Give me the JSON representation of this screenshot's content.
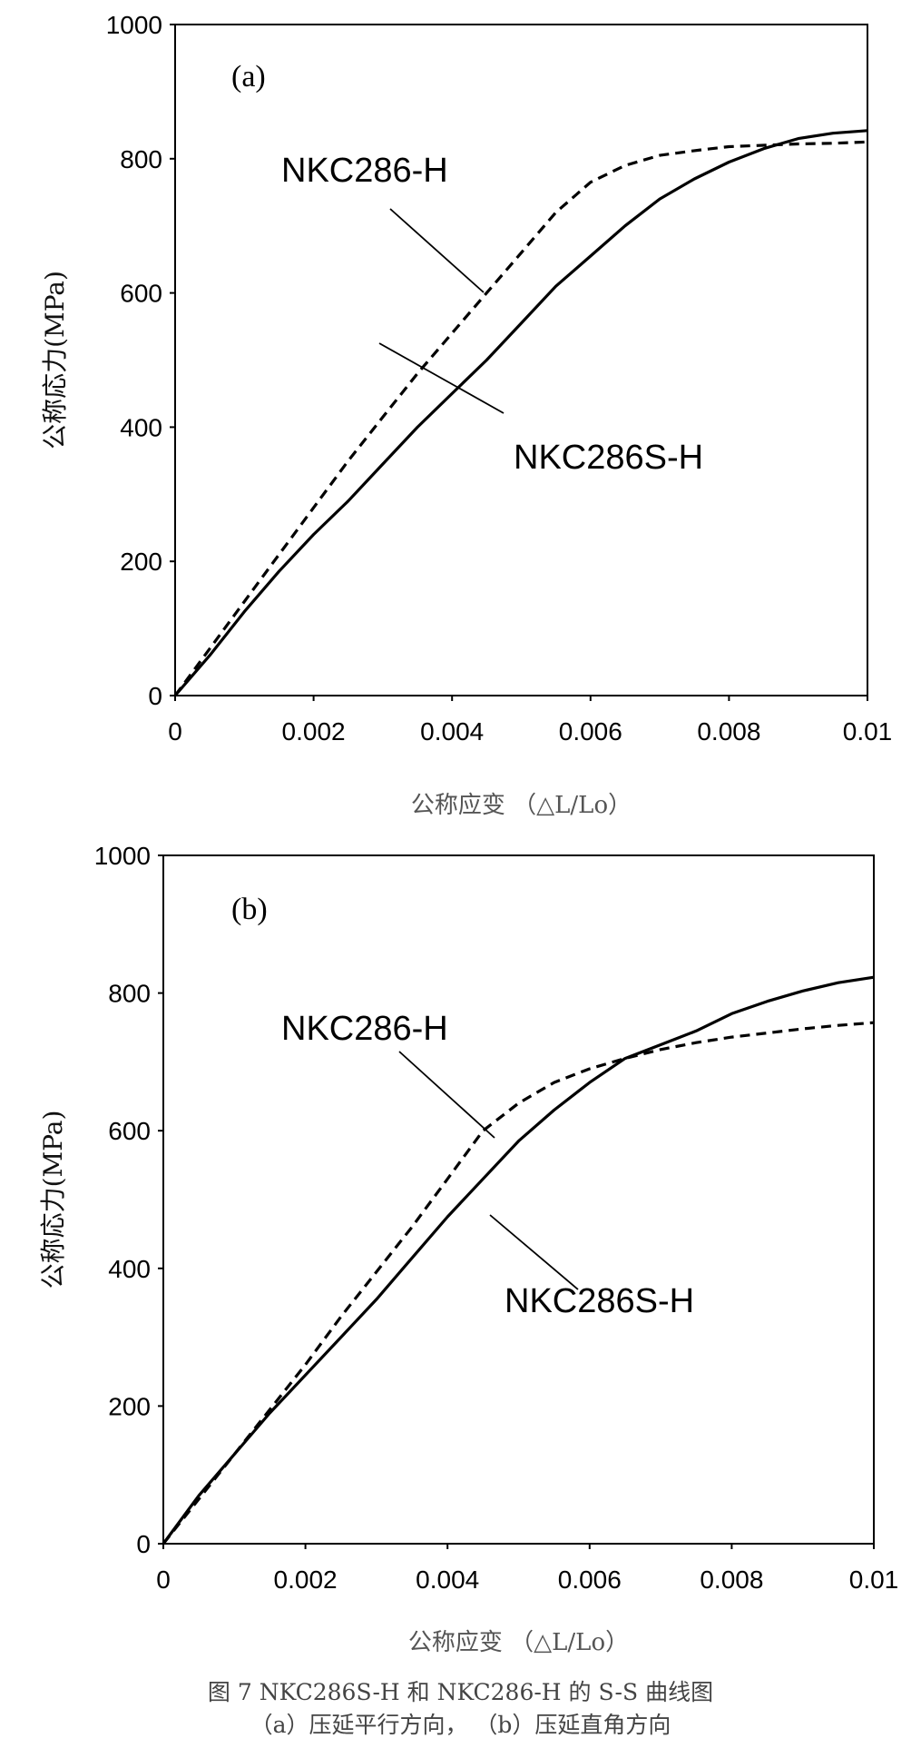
{
  "chart_data": [
    {
      "type": "line",
      "panel_label": "(a)",
      "ylabel": "公称応力(MPa)",
      "xlabel": "公称应变 （△L/Lo）",
      "xlim": [
        0,
        0.01
      ],
      "ylim": [
        0,
        1000
      ],
      "xticks": [
        "0",
        "0.002",
        "0.004",
        "0.006",
        "0.008",
        "0.01"
      ],
      "yticks": [
        "0",
        "200",
        "400",
        "600",
        "800",
        "1000"
      ],
      "grid": false,
      "series": [
        {
          "name": "NKC286-H",
          "style": "dashed",
          "x": [
            0,
            0.0005,
            0.001,
            0.0015,
            0.002,
            0.0025,
            0.003,
            0.0035,
            0.004,
            0.0045,
            0.005,
            0.0055,
            0.006,
            0.0065,
            0.007,
            0.0075,
            0.008,
            0.0085,
            0.009,
            0.0095,
            0.01
          ],
          "y": [
            0,
            70,
            140,
            210,
            280,
            350,
            415,
            480,
            540,
            600,
            660,
            720,
            765,
            790,
            805,
            812,
            818,
            820,
            822,
            823,
            825
          ]
        },
        {
          "name": "NKC286S-H",
          "style": "solid",
          "x": [
            0,
            0.0005,
            0.001,
            0.0015,
            0.002,
            0.0025,
            0.003,
            0.0035,
            0.004,
            0.0045,
            0.005,
            0.0055,
            0.006,
            0.0065,
            0.007,
            0.0075,
            0.008,
            0.0085,
            0.009,
            0.0095,
            0.01
          ],
          "y": [
            0,
            60,
            125,
            185,
            240,
            290,
            345,
            400,
            450,
            500,
            555,
            610,
            655,
            700,
            740,
            770,
            795,
            815,
            830,
            838,
            842
          ]
        }
      ],
      "annotations": [
        {
          "text": "NKC286-H",
          "series": "NKC286-H"
        },
        {
          "text": "NKC286S-H",
          "series": "NKC286S-H"
        }
      ]
    },
    {
      "type": "line",
      "panel_label": "(b)",
      "ylabel": "公称応力(MPa)",
      "xlabel": "公称应变 （△L/Lo）",
      "xlim": [
        0,
        0.01
      ],
      "ylim": [
        0,
        1000
      ],
      "xticks": [
        "0",
        "0.002",
        "0.004",
        "0.006",
        "0.008",
        "0.01"
      ],
      "yticks": [
        "0",
        "200",
        "400",
        "600",
        "800",
        "1000"
      ],
      "grid": false,
      "series": [
        {
          "name": "NKC286-H",
          "style": "dashed",
          "x": [
            0,
            0.0005,
            0.001,
            0.0015,
            0.002,
            0.0025,
            0.003,
            0.0035,
            0.004,
            0.0045,
            0.005,
            0.0055,
            0.006,
            0.0065,
            0.007,
            0.0075,
            0.008,
            0.0085,
            0.009,
            0.0095,
            0.01
          ],
          "y": [
            0,
            65,
            130,
            195,
            260,
            330,
            395,
            460,
            530,
            600,
            640,
            670,
            690,
            705,
            718,
            728,
            736,
            742,
            748,
            753,
            757
          ]
        },
        {
          "name": "NKC286S-H",
          "style": "solid",
          "x": [
            0,
            0.0005,
            0.001,
            0.0015,
            0.002,
            0.0025,
            0.003,
            0.0035,
            0.004,
            0.0045,
            0.005,
            0.0055,
            0.006,
            0.0065,
            0.007,
            0.0075,
            0.008,
            0.0085,
            0.009,
            0.0095,
            0.01
          ],
          "y": [
            0,
            70,
            130,
            190,
            245,
            300,
            355,
            415,
            475,
            530,
            585,
            630,
            670,
            705,
            725,
            745,
            770,
            788,
            803,
            815,
            823
          ]
        }
      ],
      "annotations": [
        {
          "text": "NKC286-H",
          "series": "NKC286-H"
        },
        {
          "text": "NKC286S-H",
          "series": "NKC286S-H"
        }
      ]
    }
  ],
  "caption": {
    "line1": "图 7 NKC286S-H 和 NKC286-H 的 S-S 曲线图",
    "line2": "（a）压延平行方向，    （b）压延直角方向"
  }
}
